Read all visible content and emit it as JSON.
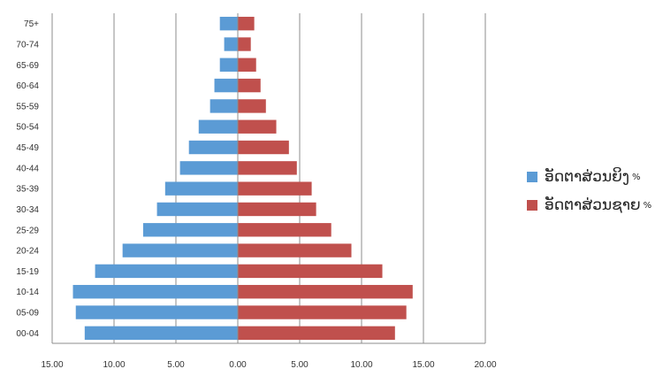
{
  "chart_data": {
    "type": "bar",
    "orientation": "horizontal-pyramid",
    "categories": [
      "75+",
      "70-74",
      "65-69",
      "60-64",
      "55-59",
      "50-54",
      "45-49",
      "40-44",
      "35-39",
      "30-34",
      "25-29",
      "20-24",
      "15-19",
      "10-14",
      "05-09",
      "00-04"
    ],
    "series": [
      {
        "name": "ອັດຕາສ່ວນຍິງ",
        "unit": "%",
        "color": "#5b9bd5",
        "side": "left",
        "values": [
          1.45,
          1.1,
          1.45,
          1.89,
          2.24,
          3.16,
          3.95,
          4.67,
          5.87,
          6.53,
          7.65,
          9.31,
          11.53,
          13.32,
          13.09,
          12.37
        ]
      },
      {
        "name": "ອັດຕາສ່ວນຊາຍ",
        "unit": "%",
        "color": "#c0504d",
        "side": "right",
        "values": [
          1.33,
          1.05,
          1.48,
          1.84,
          2.27,
          3.11,
          4.13,
          4.77,
          5.97,
          6.33,
          7.55,
          9.18,
          11.68,
          14.13,
          13.62,
          12.7
        ]
      }
    ],
    "x_ticks": [
      -15,
      -10,
      -5,
      0,
      5,
      10,
      15,
      20
    ],
    "x_tick_labels": [
      "15.00",
      "10.00",
      "5.00",
      "0.00",
      "5.00",
      "10.00",
      "15.00",
      "20.00"
    ],
    "xlim": [
      -15,
      20
    ],
    "grid": "vertical",
    "legend": "right",
    "title": "",
    "xlabel": "",
    "ylabel": ""
  }
}
